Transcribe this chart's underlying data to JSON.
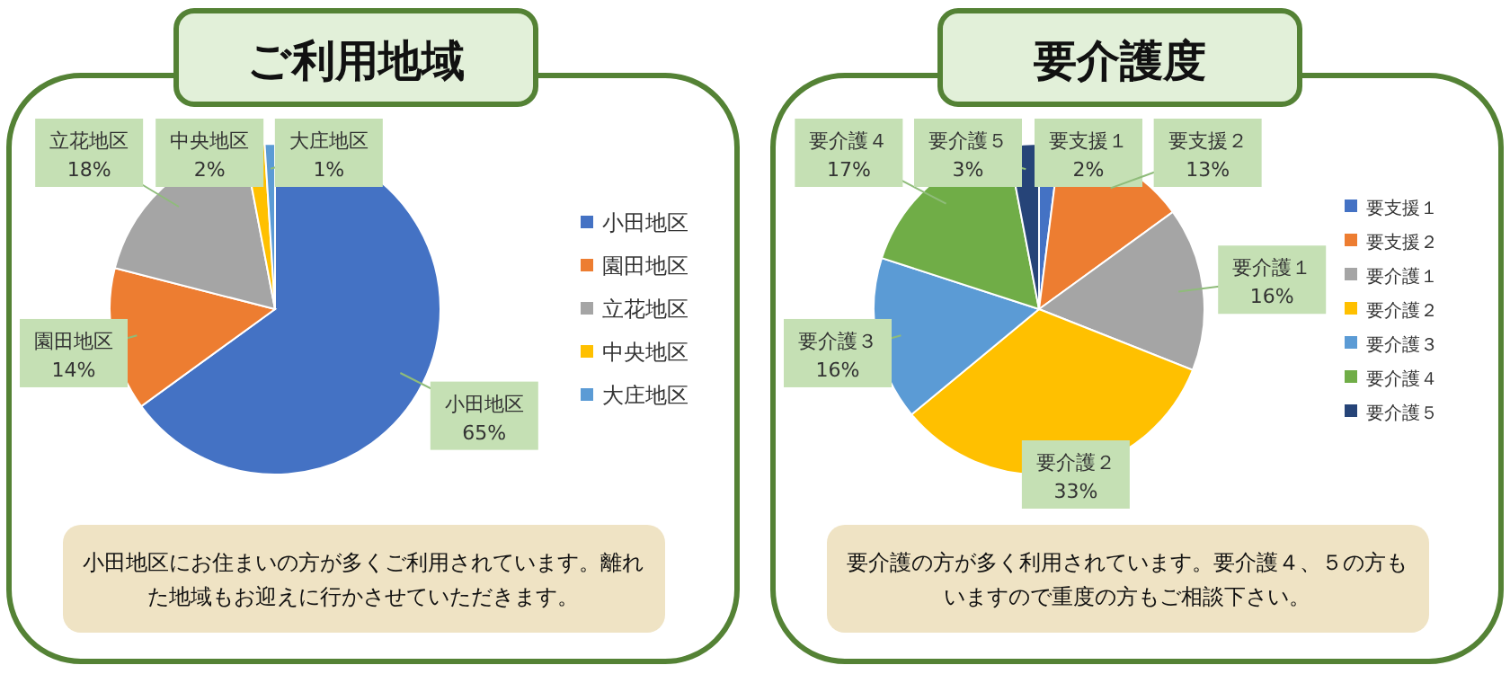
{
  "chart_data": [
    {
      "type": "pie",
      "title": "ご利用地域",
      "categories": [
        "小田地区",
        "園田地区",
        "立花地区",
        "中央地区",
        "大庄地区"
      ],
      "values": [
        65,
        14,
        18,
        2,
        1
      ],
      "colors": [
        "#4472c4",
        "#ed7d31",
        "#a5a5a5",
        "#ffc000",
        "#5b9bd5"
      ],
      "value_labels": [
        "65%",
        "14%",
        "18%",
        "2%",
        "1%"
      ],
      "legend": "right",
      "annotations": [
        "小田地区にお住まいの方が多くご利用されています。離れた地域もお迎えに行かさせていただきます。"
      ]
    },
    {
      "type": "pie",
      "title": "要介護度",
      "categories": [
        "要支援１",
        "要支援２",
        "要介護１",
        "要介護２",
        "要介護３",
        "要介護４",
        "要介護５"
      ],
      "values": [
        2,
        13,
        16,
        33,
        16,
        17,
        3
      ],
      "colors": [
        "#4472c4",
        "#ed7d31",
        "#a5a5a5",
        "#ffc000",
        "#5b9bd5",
        "#70ad47",
        "#264478"
      ],
      "value_labels": [
        "2%",
        "13%",
        "16%",
        "33%",
        "16%",
        "17%",
        "3%"
      ],
      "legend": "right",
      "annotations": [
        "要介護の方が多く利用されています。要介護４、５の方もいますので重度の方もご相談下さい。"
      ]
    }
  ]
}
